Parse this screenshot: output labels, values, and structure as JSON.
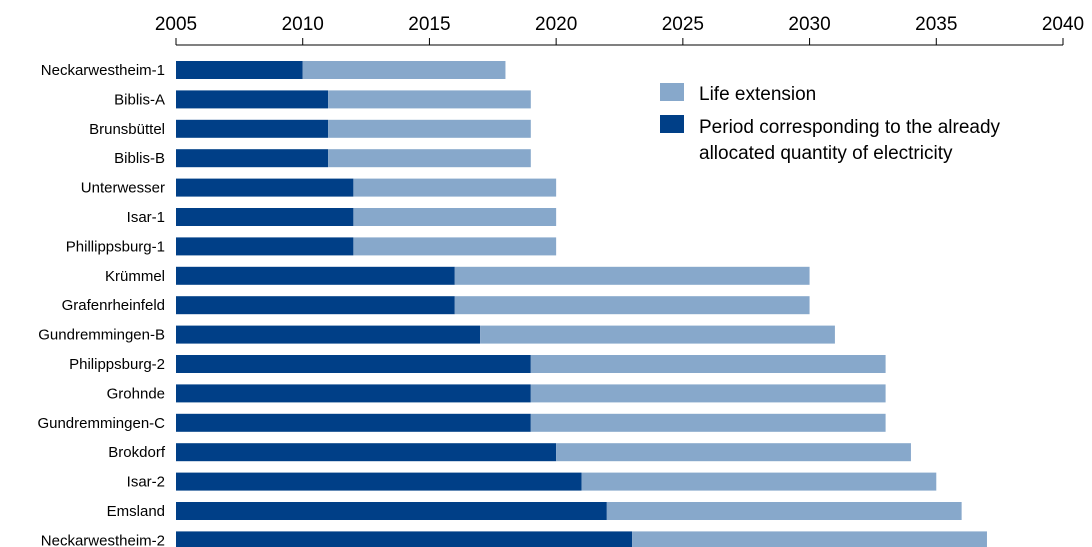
{
  "chart_data": {
    "type": "bar",
    "orientation": "horizontal",
    "stacked": true,
    "x_axis_position": "top",
    "xlim": [
      2005,
      2040
    ],
    "x_ticks": [
      2005,
      2010,
      2015,
      2020,
      2025,
      2030,
      2035,
      2040
    ],
    "grid": false,
    "legend_position": "top-right",
    "categories": [
      "Neckarwestheim-1",
      "Biblis-A",
      "Brunsbüttel",
      "Biblis-B",
      "Unterwesser",
      "Isar-1",
      "Phillippsburg-1",
      "Krümmel",
      "Grafenrheinfeld",
      "Gundremmingen-B",
      "Philippsburg-2",
      "Grohnde",
      "Gundremmingen-C",
      "Brokdorf",
      "Isar-2",
      "Emsland",
      "Neckarwestheim-2"
    ],
    "series": [
      {
        "name": "Period corresponding to the already allocated quantity of electricity",
        "color": "#003f87",
        "start": 2005,
        "end": [
          2010,
          2011,
          2011,
          2011,
          2012,
          2012,
          2012,
          2016,
          2016,
          2017,
          2019,
          2019,
          2019,
          2020,
          2021,
          2022,
          2023
        ]
      },
      {
        "name": "Life extension",
        "color": "#87a8cb",
        "end": [
          2018,
          2019,
          2019,
          2019,
          2020,
          2020,
          2020,
          2030,
          2030,
          2031,
          2033,
          2033,
          2033,
          2034,
          2035,
          2036,
          2037
        ]
      }
    ],
    "legend": [
      {
        "label": "Life extension",
        "color": "#87a8cb"
      },
      {
        "label_lines": [
          "Period corresponding to the already",
          "allocated quantity of electricity"
        ],
        "color": "#003f87"
      }
    ]
  }
}
